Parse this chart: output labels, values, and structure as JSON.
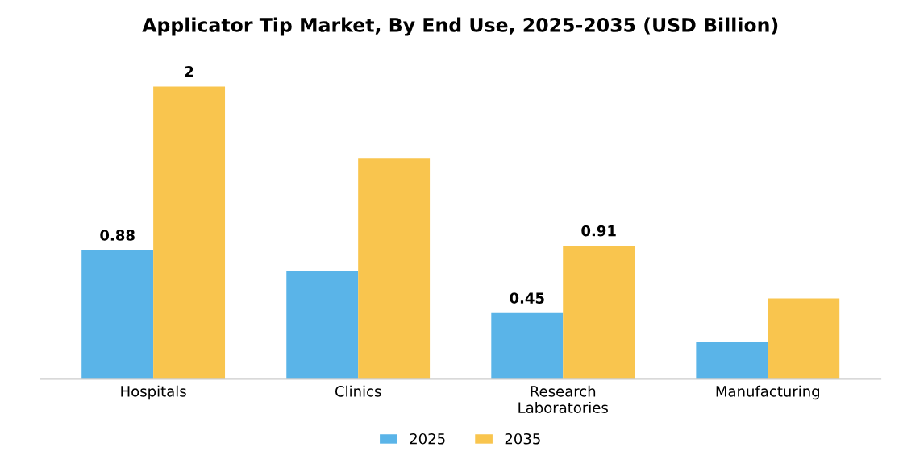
{
  "chart_data": {
    "type": "bar",
    "title": "Applicator Tip Market, By End Use, 2025-2035 (USD Billion)",
    "categories": [
      "Hospitals",
      "Clinics",
      "Research\nLaboratories",
      "Manufacturing"
    ],
    "series": [
      {
        "name": "2025",
        "color": "#5ab4e8",
        "values": [
          0.88,
          0.74,
          0.45,
          0.25
        ],
        "value_labels": [
          "0.88",
          null,
          "0.45",
          null
        ]
      },
      {
        "name": "2035",
        "color": "#f9c54e",
        "values": [
          2,
          1.51,
          0.91,
          0.55
        ],
        "value_labels": [
          "2",
          null,
          "0.91",
          null
        ]
      }
    ],
    "legend": "bottom",
    "grid": false
  }
}
